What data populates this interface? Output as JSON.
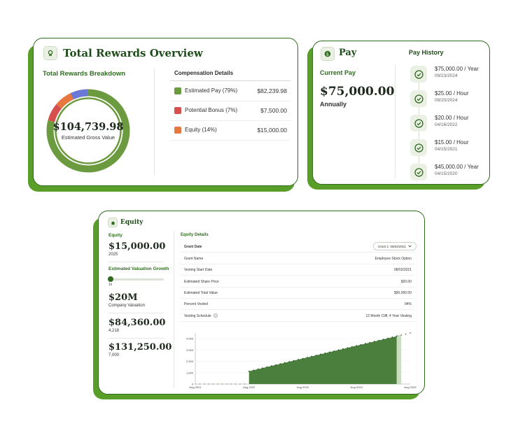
{
  "overview": {
    "title": "Total Rewards Overview",
    "breakdown_title": "Total Rewards Breakdown",
    "total_amount": "$104,739.98",
    "total_caption": "Estimated Gross Value",
    "comp_title": "Compensation Details",
    "items": [
      {
        "label": "Estimated Pay  (79%)",
        "value": "$82,239.98",
        "color": "#6b9a3f",
        "percent": 79
      },
      {
        "label": "Potential Bonus  (7%)",
        "value": "$7,500.00",
        "color": "#d6504f",
        "percent": 7
      },
      {
        "label": "Equity  (14%)",
        "value": "$15,000.00",
        "color": "#e6773f",
        "percent": 14
      }
    ],
    "blue_color": "#6a78d8"
  },
  "pay": {
    "title": "Pay",
    "current_label": "Current Pay",
    "current_amount": "$75,000.00",
    "period": "Annually",
    "history_title": "Pay History",
    "history": [
      {
        "amount": "$75,000.00 / Year",
        "date": "09/23/2024"
      },
      {
        "amount": "$25.00 / Hour",
        "date": "09/20/2024"
      },
      {
        "amount": "$20.00 / Hour",
        "date": "04/16/2022"
      },
      {
        "amount": "$15.00 / Hour",
        "date": "04/15/2021"
      },
      {
        "amount": "$45,000.00 / Year",
        "date": "04/15/2020"
      }
    ]
  },
  "equity": {
    "title": "Equity",
    "equity_label": "Equity",
    "equity_amount": "$15,000.00",
    "equity_year": "2025",
    "growth_label": "Estimated Valuation Growth",
    "slider_value": "1x",
    "valuation": "$20M",
    "valuation_caption": "Company Valuation",
    "value_1": "$84,360.00",
    "value_1_sub": "4,218",
    "value_2": "$131,250.00",
    "value_2_sub": "7,000",
    "details_title": "Equity Details",
    "grant_date_label": "Grant Date",
    "grant_select": "Grant 1: 08/02/2021",
    "rows": [
      {
        "k": "Grant Name",
        "v": "Employee Stock Option"
      },
      {
        "k": "Vesting Start Date",
        "v": "08/02/2021"
      },
      {
        "k": "Estimated Share Price",
        "v": "$20.00"
      },
      {
        "k": "Estimated Total Value",
        "v": "$90,000.00"
      },
      {
        "k": "Percent Vested",
        "v": "94%"
      },
      {
        "k": "Vesting Schedule",
        "v": "12 Month Cliff, 4 Year Vesting"
      }
    ]
  },
  "chart_data": {
    "type": "area",
    "x_ticks": [
      "Aug 2021",
      "Aug 2022",
      "Aug 2023",
      "Aug 2024",
      "Aug 2025"
    ],
    "y_ticks": [
      "0",
      "1,000",
      "2,000",
      "3,000",
      "4,000"
    ],
    "ylim": [
      0,
      4500
    ],
    "cliff_month": 12,
    "total_months": 48,
    "current_month": 45,
    "max_shares": 4500,
    "fill_color": "#4a7f3d"
  }
}
